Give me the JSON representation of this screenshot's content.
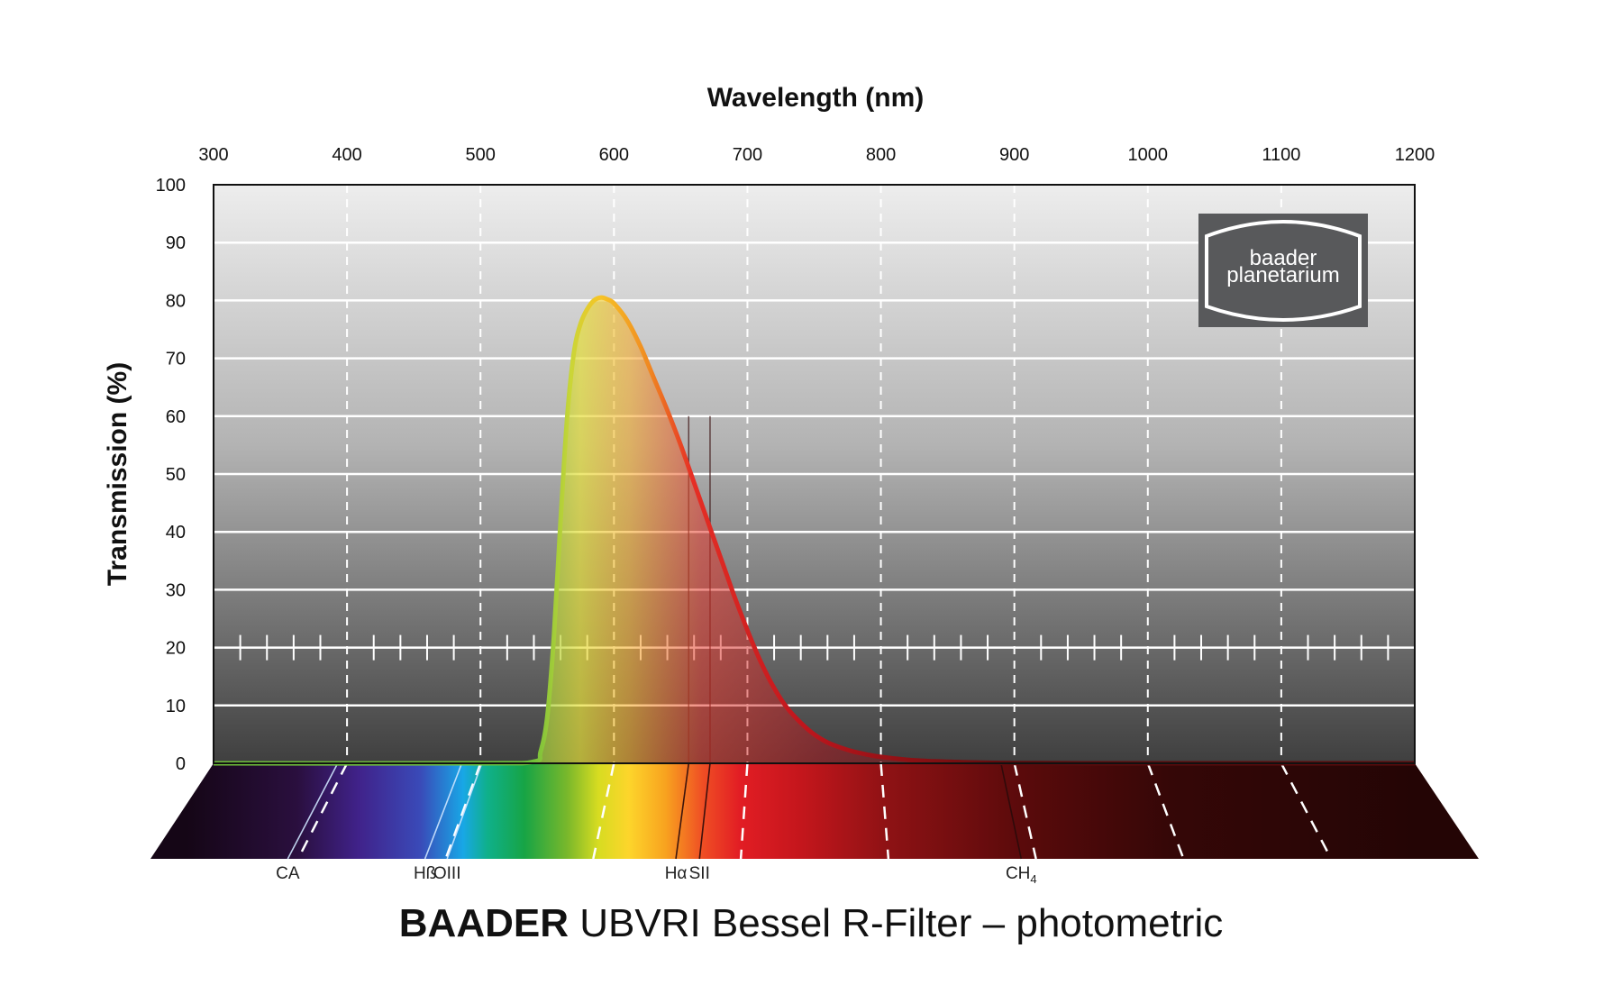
{
  "chart_data": {
    "type": "area",
    "title_brand": "BAADER",
    "title_rest": "UBVRI Bessel R-Filter – photometric",
    "xlabel": "Wavelength (nm)",
    "ylabel": "Transmission (%)",
    "xlim": [
      300,
      1200
    ],
    "ylim": [
      0,
      100
    ],
    "x_ticks": [
      300,
      400,
      500,
      600,
      700,
      800,
      900,
      1000,
      1100,
      1200
    ],
    "y_ticks": [
      0,
      10,
      20,
      30,
      40,
      50,
      60,
      70,
      80,
      90,
      100
    ],
    "grid": true,
    "series": [
      {
        "x": [
          300,
          500,
          540,
          545,
          550,
          555,
          560,
          565,
          570,
          575,
          580,
          585,
          590,
          595,
          600,
          610,
          620,
          630,
          640,
          650,
          660,
          670,
          680,
          690,
          700,
          710,
          720,
          730,
          740,
          750,
          760,
          770,
          780,
          790,
          800,
          820,
          840,
          860,
          880,
          900,
          950,
          1000,
          1100,
          1200
        ],
        "y": [
          0,
          0,
          0.3,
          2,
          8,
          22,
          42,
          60,
          71,
          76,
          78.5,
          80,
          80.5,
          80.2,
          79.5,
          76.5,
          72,
          66.5,
          61,
          55,
          48.5,
          42,
          35.5,
          29,
          23,
          17.5,
          13,
          9.5,
          7,
          5,
          3.6,
          2.7,
          2,
          1.5,
          1.1,
          0.6,
          0.35,
          0.2,
          0.1,
          0.05,
          0,
          0,
          0,
          0
        ]
      }
    ],
    "spectral_lines": [
      {
        "label": "CA",
        "nm": 393
      },
      {
        "label": "Hß",
        "nm": 486
      },
      {
        "label": "OIII",
        "nm": 501
      },
      {
        "label": "Hα",
        "nm": 656
      },
      {
        "label": "SII",
        "nm": 672
      },
      {
        "label": "CH",
        "label_sub": "4",
        "nm": 890
      }
    ]
  },
  "logo": {
    "line1": "baader",
    "line2": "planetarium"
  }
}
